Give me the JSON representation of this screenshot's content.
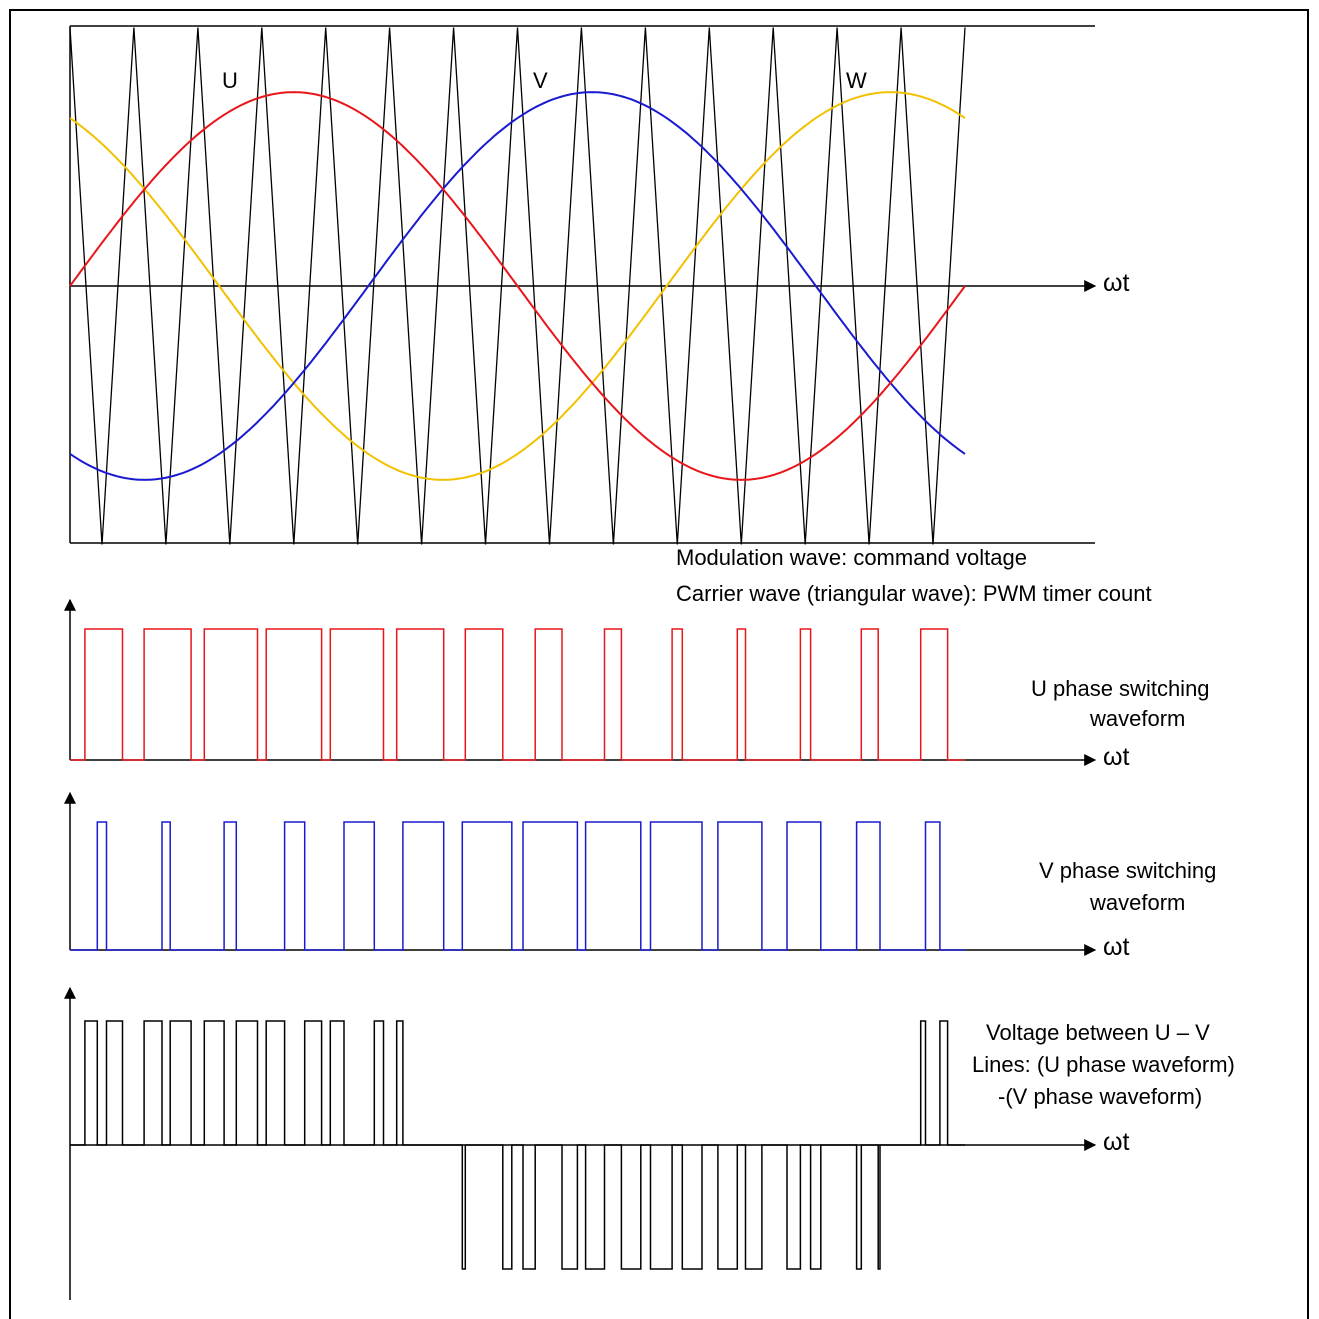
{
  "colors": {
    "u": "#e8161b",
    "v": "#1a1ad0",
    "w": "#f2c100",
    "carrier": "#000000",
    "line_voltage": "#000000"
  },
  "top_panel": {
    "phase_labels": {
      "u": "U",
      "v": "V",
      "w": "W"
    },
    "axis_label": "ωt",
    "caption_line1": "Modulation wave: command voltage",
    "caption_line2": "Carrier wave (triangular wave): PWM timer count"
  },
  "u_panel": {
    "label_line1": "U phase switching",
    "label_line2": "waveform",
    "axis_label": "ωt"
  },
  "v_panel": {
    "label_line1": "V phase switching",
    "label_line2": "waveform",
    "axis_label": "ωt"
  },
  "uv_panel": {
    "label_line1": "Voltage between U – V",
    "label_line2": "Lines: (U phase waveform)",
    "label_line3": "-(V phase waveform)",
    "axis_label": "ωt"
  },
  "chart_data": {
    "type": "line",
    "modulation_amplitude": 0.75,
    "carrier_periods": 14,
    "phase_shift_deg": {
      "U": 0,
      "V": -120,
      "W": 120
    },
    "x_range_deg": [
      0,
      360
    ],
    "series": [
      {
        "name": "U"
      },
      {
        "name": "V"
      },
      {
        "name": "W"
      }
    ]
  }
}
